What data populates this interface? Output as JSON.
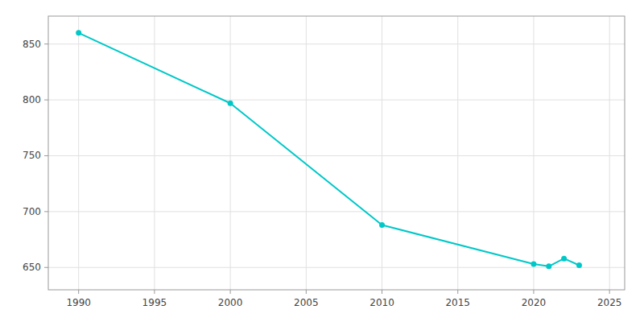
{
  "chart_data": {
    "type": "line",
    "x": [
      1990,
      2000,
      2010,
      2020,
      2021,
      2022,
      2023
    ],
    "values": [
      860,
      797,
      688,
      653,
      651,
      658,
      652
    ],
    "color": "#00C8C8",
    "marker": "o",
    "xlim": [
      1988,
      2026
    ],
    "ylim": [
      630,
      875
    ],
    "xticks": [
      1990,
      1995,
      2000,
      2005,
      2010,
      2015,
      2020,
      2025
    ],
    "yticks": [
      650,
      700,
      750,
      800,
      850
    ],
    "grid": true
  }
}
